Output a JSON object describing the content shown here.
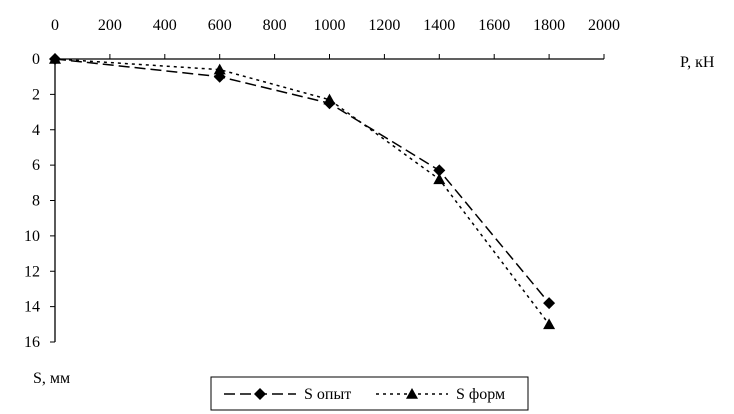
{
  "chart_data": {
    "type": "line",
    "title": "",
    "xlabel": "P, кН",
    "ylabel": "S, мм",
    "x_axis_position": "top",
    "y_axis_inverted": true,
    "xlim": [
      0,
      2000
    ],
    "ylim": [
      0,
      16
    ],
    "x_ticks": [
      "0",
      "200",
      "400",
      "600",
      "800",
      "1000",
      "1200",
      "1400",
      "1600",
      "1800",
      "2000"
    ],
    "y_ticks": [
      "0",
      "2",
      "4",
      "6",
      "8",
      "10",
      "12",
      "14",
      "16"
    ],
    "grid": false,
    "legend_position": "bottom",
    "series": [
      {
        "name": "S опыт",
        "marker": "diamond",
        "line_style": "long-dash",
        "x": [
          0,
          600,
          1000,
          1400,
          1800
        ],
        "y": [
          0,
          1.0,
          2.5,
          6.3,
          13.8
        ]
      },
      {
        "name": "S форм",
        "marker": "triangle",
        "line_style": "dotted",
        "x": [
          0,
          600,
          1000,
          1400,
          1800
        ],
        "y": [
          0,
          0.6,
          2.3,
          6.8,
          15.0
        ]
      }
    ]
  }
}
